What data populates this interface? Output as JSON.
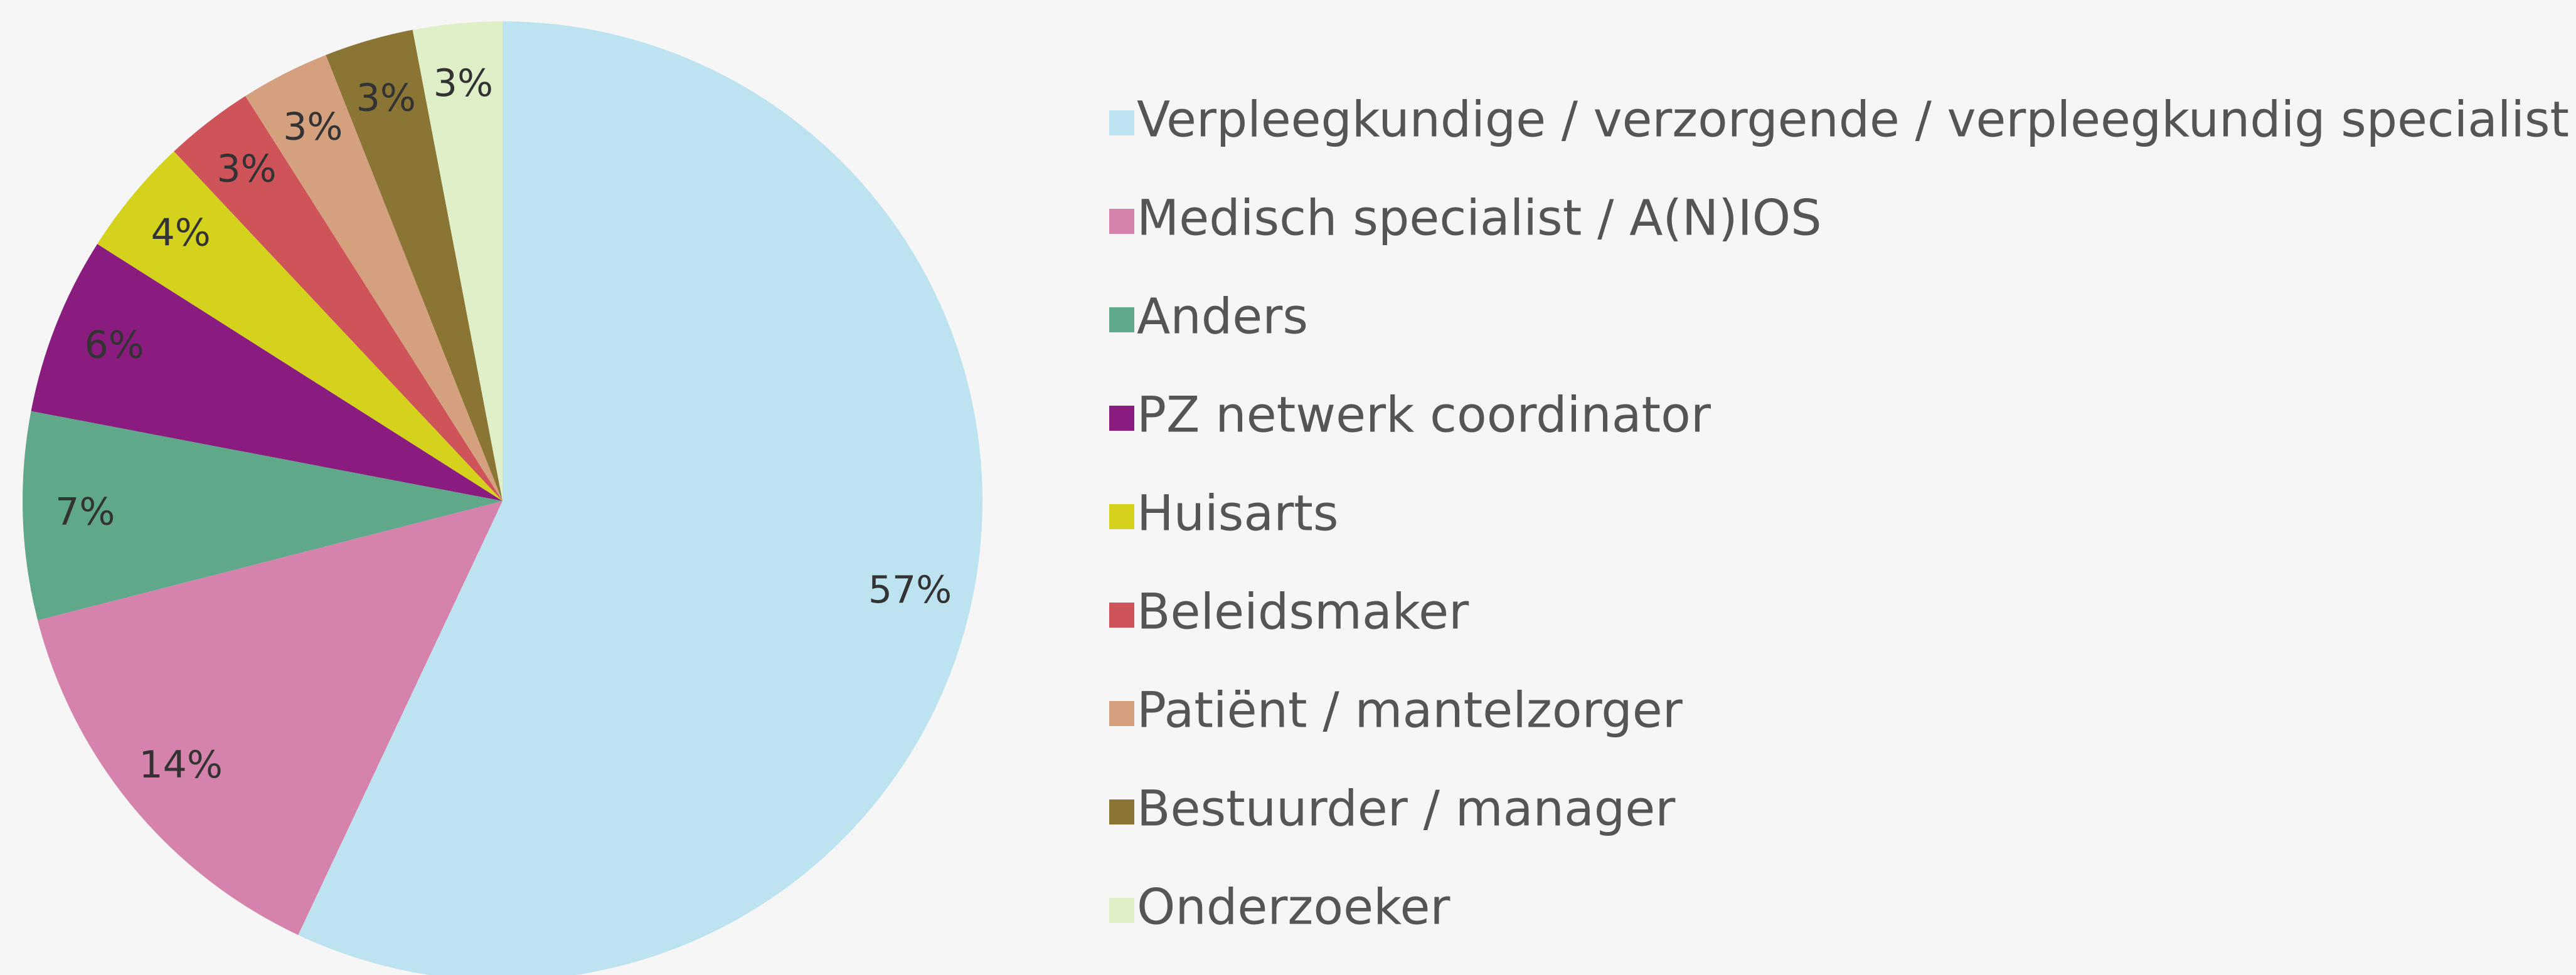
{
  "chart_data": {
    "type": "pie",
    "categories": [
      "Verpleegkundige / verzorgende / verpleegkundig specialist",
      "Medisch specialist / A(N)IOS",
      "Anders",
      "PZ netwerk coordinator",
      "Huisarts",
      "Beleidsmaker",
      "Patiënt / mantelzorger",
      "Bestuurder / manager",
      "Onderzoeker"
    ],
    "values": [
      57,
      14,
      7,
      6,
      4,
      3,
      3,
      3,
      3
    ],
    "value_labels": [
      "57%",
      "14%",
      "7%",
      "6%",
      "4%",
      "3%",
      "3%",
      "3%",
      "3%"
    ],
    "colors": [
      "#bde3f0",
      "#d583ad",
      "#5fa88a",
      "#891c7e",
      "#d4d21c",
      "#cf545a",
      "#d4a07e",
      "#8b7535",
      "#dfefc8"
    ],
    "legend": "right"
  }
}
